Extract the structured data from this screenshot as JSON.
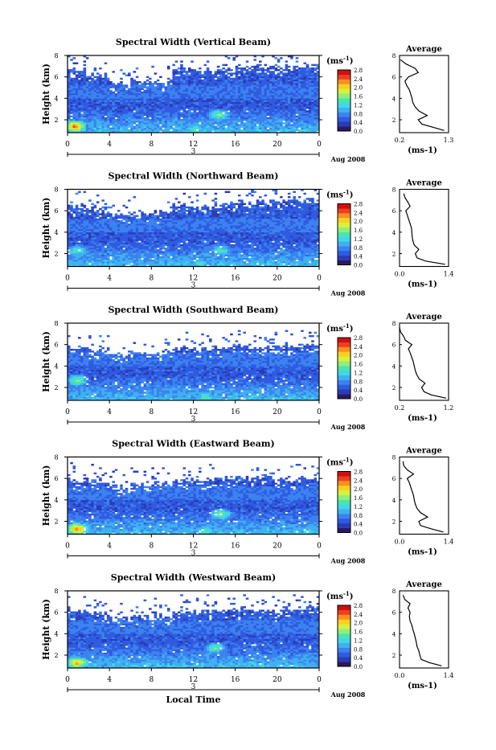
{
  "figure": {
    "colorbar_unit": "(ms",
    "colorbar_unit_exp": "-1",
    "x_axis_label": "Local Time",
    "x_ticks": [
      "0",
      "4",
      "8",
      "12",
      "16",
      "20",
      "0"
    ],
    "date_day": "3",
    "date_month_year": "Aug 2008",
    "y_axis_label": "Height (km)",
    "y_ticks": [
      "2",
      "4",
      "6",
      "8"
    ],
    "colorbar_ticks": [
      "0.0",
      "0.4",
      "0.8",
      "1.2",
      "1.6",
      "2.0",
      "2.4",
      "2.8"
    ],
    "profile_title": "Average",
    "colormap": [
      "#2a1a5e",
      "#2b3bb8",
      "#2f5be0",
      "#3b82f0",
      "#3fb0f0",
      "#40d8e8",
      "#4de3b0",
      "#8ef07a",
      "#d8f040",
      "#f8d020",
      "#f89020",
      "#ee4020",
      "#d01010"
    ]
  },
  "chart_data": [
    {
      "type": "heatmap",
      "title": "Spectral Width (Vertical Beam)",
      "xlabel": "",
      "ylabel": "Height (km)",
      "xlim": [
        0,
        24
      ],
      "ylim": [
        0.8,
        8
      ],
      "colorbar_range": [
        0,
        2.8
      ],
      "description_values": {
        "cloud_top_km": [
          6.5,
          6.2,
          5.4,
          5.6,
          5.6,
          6.8,
          6.6,
          6.7,
          6.8,
          6.9,
          6.9,
          7.0
        ],
        "enhanced_spots": [
          {
            "t": 0.6,
            "h": 1.3,
            "v": 2.4
          },
          {
            "t": 14.3,
            "h": 2.4,
            "v": 1.6
          },
          {
            "t": 12.0,
            "h": 1.0,
            "v": 1.4
          }
        ]
      },
      "profile": {
        "title": "Average",
        "xlabel": "(ms-1)",
        "xlim": [
          0.2,
          1.3
        ],
        "x_ticks": [
          "0.2",
          "1.3"
        ],
        "ylim": [
          0.8,
          8
        ],
        "h": [
          1.0,
          1.3,
          1.6,
          2.0,
          2.4,
          2.8,
          3.2,
          3.6,
          4.0,
          4.4,
          4.8,
          5.2,
          5.6,
          6.0,
          6.4,
          6.8,
          7.2,
          7.6
        ],
        "v": [
          1.2,
          0.95,
          0.7,
          0.62,
          0.82,
          0.64,
          0.55,
          0.5,
          0.48,
          0.45,
          0.42,
          0.36,
          0.32,
          0.4,
          0.62,
          0.55,
          0.35,
          0.22
        ]
      }
    },
    {
      "type": "heatmap",
      "title": "Spectral Width (Northward Beam)",
      "xlabel": "",
      "ylabel": "Height (km)",
      "xlim": [
        0,
        24
      ],
      "ylim": [
        0.8,
        8
      ],
      "colorbar_range": [
        0,
        2.8
      ],
      "description_values": {
        "cloud_top_km": [
          6.4,
          6.3,
          5.5,
          5.7,
          5.8,
          6.5,
          6.4,
          6.6,
          6.7,
          6.8,
          6.8,
          6.9
        ],
        "enhanced_spots": [
          {
            "t": 0.8,
            "h": 2.2,
            "v": 1.4
          },
          {
            "t": 14.5,
            "h": 2.2,
            "v": 1.4
          },
          {
            "t": 12.5,
            "h": 1.0,
            "v": 1.3
          }
        ]
      },
      "profile": {
        "title": "Average",
        "xlabel": "(ms-1)",
        "xlim": [
          0.0,
          1.4
        ],
        "x_ticks": [
          "0.0",
          "1.4"
        ],
        "ylim": [
          0.8,
          8
        ],
        "h": [
          1.0,
          1.3,
          1.6,
          2.0,
          2.4,
          2.8,
          3.2,
          3.6,
          4.0,
          4.4,
          4.8,
          5.2,
          5.6,
          6.0,
          6.4,
          6.8,
          7.2,
          7.6
        ],
        "v": [
          1.3,
          0.75,
          0.5,
          0.45,
          0.55,
          0.42,
          0.38,
          0.36,
          0.35,
          0.34,
          0.3,
          0.26,
          0.22,
          0.18,
          0.3,
          0.24,
          0.16,
          0.12
        ]
      }
    },
    {
      "type": "heatmap",
      "title": "Spectral Width (Southward Beam)",
      "xlabel": "",
      "ylabel": "Height (km)",
      "xlim": [
        0,
        24
      ],
      "ylim": [
        0.8,
        8
      ],
      "colorbar_range": [
        0,
        2.8
      ],
      "description_values": {
        "cloud_top_km": [
          5.6,
          5.5,
          5.0,
          5.1,
          5.2,
          5.6,
          5.6,
          5.7,
          5.8,
          5.7,
          5.8,
          5.8
        ],
        "enhanced_spots": [
          {
            "t": 0.8,
            "h": 2.6,
            "v": 1.6
          },
          {
            "t": 13.0,
            "h": 1.0,
            "v": 1.4
          }
        ]
      },
      "profile": {
        "title": "Average",
        "xlabel": "(ms-1)",
        "xlim": [
          0.2,
          1.2
        ],
        "x_ticks": [
          "0.2",
          "1.2"
        ],
        "ylim": [
          0.8,
          8
        ],
        "h": [
          1.0,
          1.3,
          1.6,
          2.0,
          2.4,
          2.8,
          3.2,
          3.6,
          4.0,
          4.4,
          4.8,
          5.2,
          5.6,
          6.0,
          6.4,
          6.8,
          7.2,
          7.6
        ],
        "v": [
          1.15,
          0.85,
          0.7,
          0.65,
          0.72,
          0.6,
          0.55,
          0.52,
          0.5,
          0.48,
          0.45,
          0.42,
          0.38,
          0.45,
          0.32,
          0.28,
          0.22,
          0.2
        ]
      }
    },
    {
      "type": "heatmap",
      "title": "Spectral Width (Eastward Beam)",
      "xlabel": "",
      "ylabel": "Height (km)",
      "xlim": [
        0,
        24
      ],
      "ylim": [
        0.8,
        8
      ],
      "colorbar_range": [
        0,
        2.8
      ],
      "description_values": {
        "cloud_top_km": [
          5.8,
          5.7,
          5.2,
          5.4,
          5.4,
          5.8,
          5.8,
          5.9,
          6.0,
          6.0,
          5.9,
          6.0
        ],
        "enhanced_spots": [
          {
            "t": 0.8,
            "h": 1.2,
            "v": 2.4
          },
          {
            "t": 14.5,
            "h": 2.6,
            "v": 1.6
          },
          {
            "t": 13.0,
            "h": 1.0,
            "v": 1.4
          }
        ]
      },
      "profile": {
        "title": "Average",
        "xlabel": "(ms-1)",
        "xlim": [
          0.0,
          1.4
        ],
        "x_ticks": [
          "0.0",
          "1.4"
        ],
        "ylim": [
          0.8,
          8
        ],
        "h": [
          1.0,
          1.3,
          1.6,
          2.0,
          2.4,
          2.8,
          3.2,
          3.6,
          4.0,
          4.4,
          4.8,
          5.2,
          5.6,
          6.0,
          6.4,
          6.8,
          7.2,
          7.6
        ],
        "v": [
          1.25,
          0.9,
          0.6,
          0.55,
          0.8,
          0.6,
          0.5,
          0.45,
          0.42,
          0.4,
          0.36,
          0.32,
          0.28,
          0.22,
          0.4,
          0.22,
          0.12,
          0.1
        ]
      }
    },
    {
      "type": "heatmap",
      "title": "Spectral Width (Westward Beam)",
      "xlabel": "Local Time",
      "ylabel": "Height (km)",
      "xlim": [
        0,
        24
      ],
      "ylim": [
        0.8,
        8
      ],
      "colorbar_range": [
        0,
        2.8
      ],
      "description_values": {
        "cloud_top_km": [
          6.0,
          5.9,
          5.3,
          5.5,
          5.6,
          6.0,
          6.0,
          6.1,
          6.2,
          6.1,
          6.1,
          6.2
        ],
        "enhanced_spots": [
          {
            "t": 0.8,
            "h": 1.2,
            "v": 2.2
          },
          {
            "t": 14.0,
            "h": 2.6,
            "v": 1.5
          }
        ]
      },
      "profile": {
        "title": "Average",
        "xlabel": "(ms-1)",
        "xlim": [
          0.0,
          1.4
        ],
        "x_ticks": [
          "0.0",
          "1.4"
        ],
        "ylim": [
          0.8,
          8
        ],
        "h": [
          1.0,
          1.3,
          1.6,
          2.0,
          2.4,
          2.8,
          3.2,
          3.6,
          4.0,
          4.4,
          4.8,
          5.2,
          5.6,
          6.0,
          6.4,
          6.8,
          7.2,
          7.6
        ],
        "v": [
          1.2,
          0.85,
          0.62,
          0.58,
          0.55,
          0.5,
          0.48,
          0.45,
          0.42,
          0.38,
          0.35,
          0.3,
          0.28,
          0.3,
          0.24,
          0.3,
          0.15,
          0.1
        ]
      }
    }
  ]
}
